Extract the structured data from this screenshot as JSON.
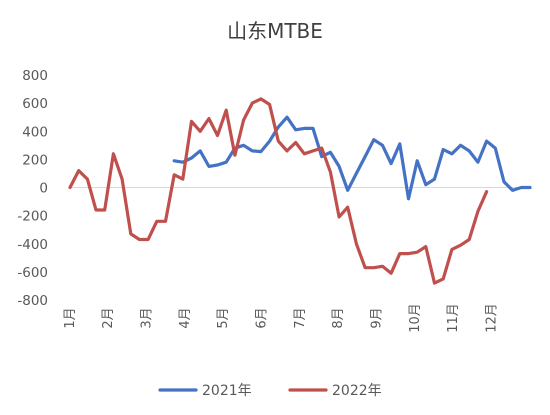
{
  "chart_data": {
    "type": "line",
    "title": "山东MTBE",
    "xlabel": "",
    "ylabel": "",
    "ylim": [
      -800,
      800
    ],
    "yticks": [
      800,
      600,
      400,
      200,
      0,
      -200,
      -400,
      -600,
      -800
    ],
    "x_categories": [
      "1月",
      "2月",
      "3月",
      "4月",
      "5月",
      "6月",
      "7月",
      "8月",
      "9月",
      "10月",
      "11月",
      "12月"
    ],
    "x_unit": "week",
    "x_range": [
      0,
      53
    ],
    "grid": false,
    "legend_position": "bottom",
    "series": [
      {
        "name": "2021年",
        "color": "#4472C4",
        "x": [
          12,
          13,
          14,
          15,
          16,
          17,
          18,
          19,
          20,
          21,
          22,
          23,
          24,
          25,
          26,
          27,
          28,
          29,
          30,
          31,
          32,
          33,
          34,
          35,
          36,
          37,
          38,
          39,
          40,
          41,
          42,
          43,
          44,
          45,
          46,
          47,
          48,
          49,
          50,
          51,
          52,
          53
        ],
        "values": [
          190,
          180,
          210,
          260,
          150,
          160,
          180,
          280,
          300,
          260,
          255,
          330,
          430,
          500,
          410,
          420,
          420,
          220,
          250,
          150,
          -20,
          100,
          220,
          340,
          300,
          170,
          310,
          -80,
          190,
          20,
          60,
          270,
          240,
          300,
          260,
          180,
          330,
          280,
          40,
          -20,
          0,
          0
        ],
        "x_offset": 0
      },
      {
        "name": "2022年",
        "color": "#C0504D",
        "x": [
          0,
          1,
          2,
          3,
          4,
          5,
          6,
          7,
          8,
          9,
          10,
          11,
          12,
          13,
          14,
          15,
          16,
          17,
          18,
          19,
          20,
          21,
          22,
          23,
          24,
          25,
          26,
          27,
          28,
          29,
          30,
          31,
          32,
          33,
          34,
          35,
          36,
          37,
          38,
          39,
          40,
          41,
          42,
          43,
          44,
          45,
          46,
          47,
          48,
          49
        ],
        "values": [
          0,
          120,
          60,
          -160,
          -160,
          240,
          60,
          -330,
          -370,
          -370,
          -240,
          -240,
          90,
          60,
          470,
          400,
          490,
          370,
          550,
          230,
          480,
          600,
          630,
          590,
          330,
          260,
          320,
          240,
          260,
          280,
          110,
          -210,
          -140,
          -400,
          -570,
          -570,
          -560,
          -610,
          -470,
          -470,
          -460,
          -420,
          -680,
          -650,
          -440,
          -410,
          -370,
          -170,
          -30,
          null
        ]
      }
    ]
  }
}
